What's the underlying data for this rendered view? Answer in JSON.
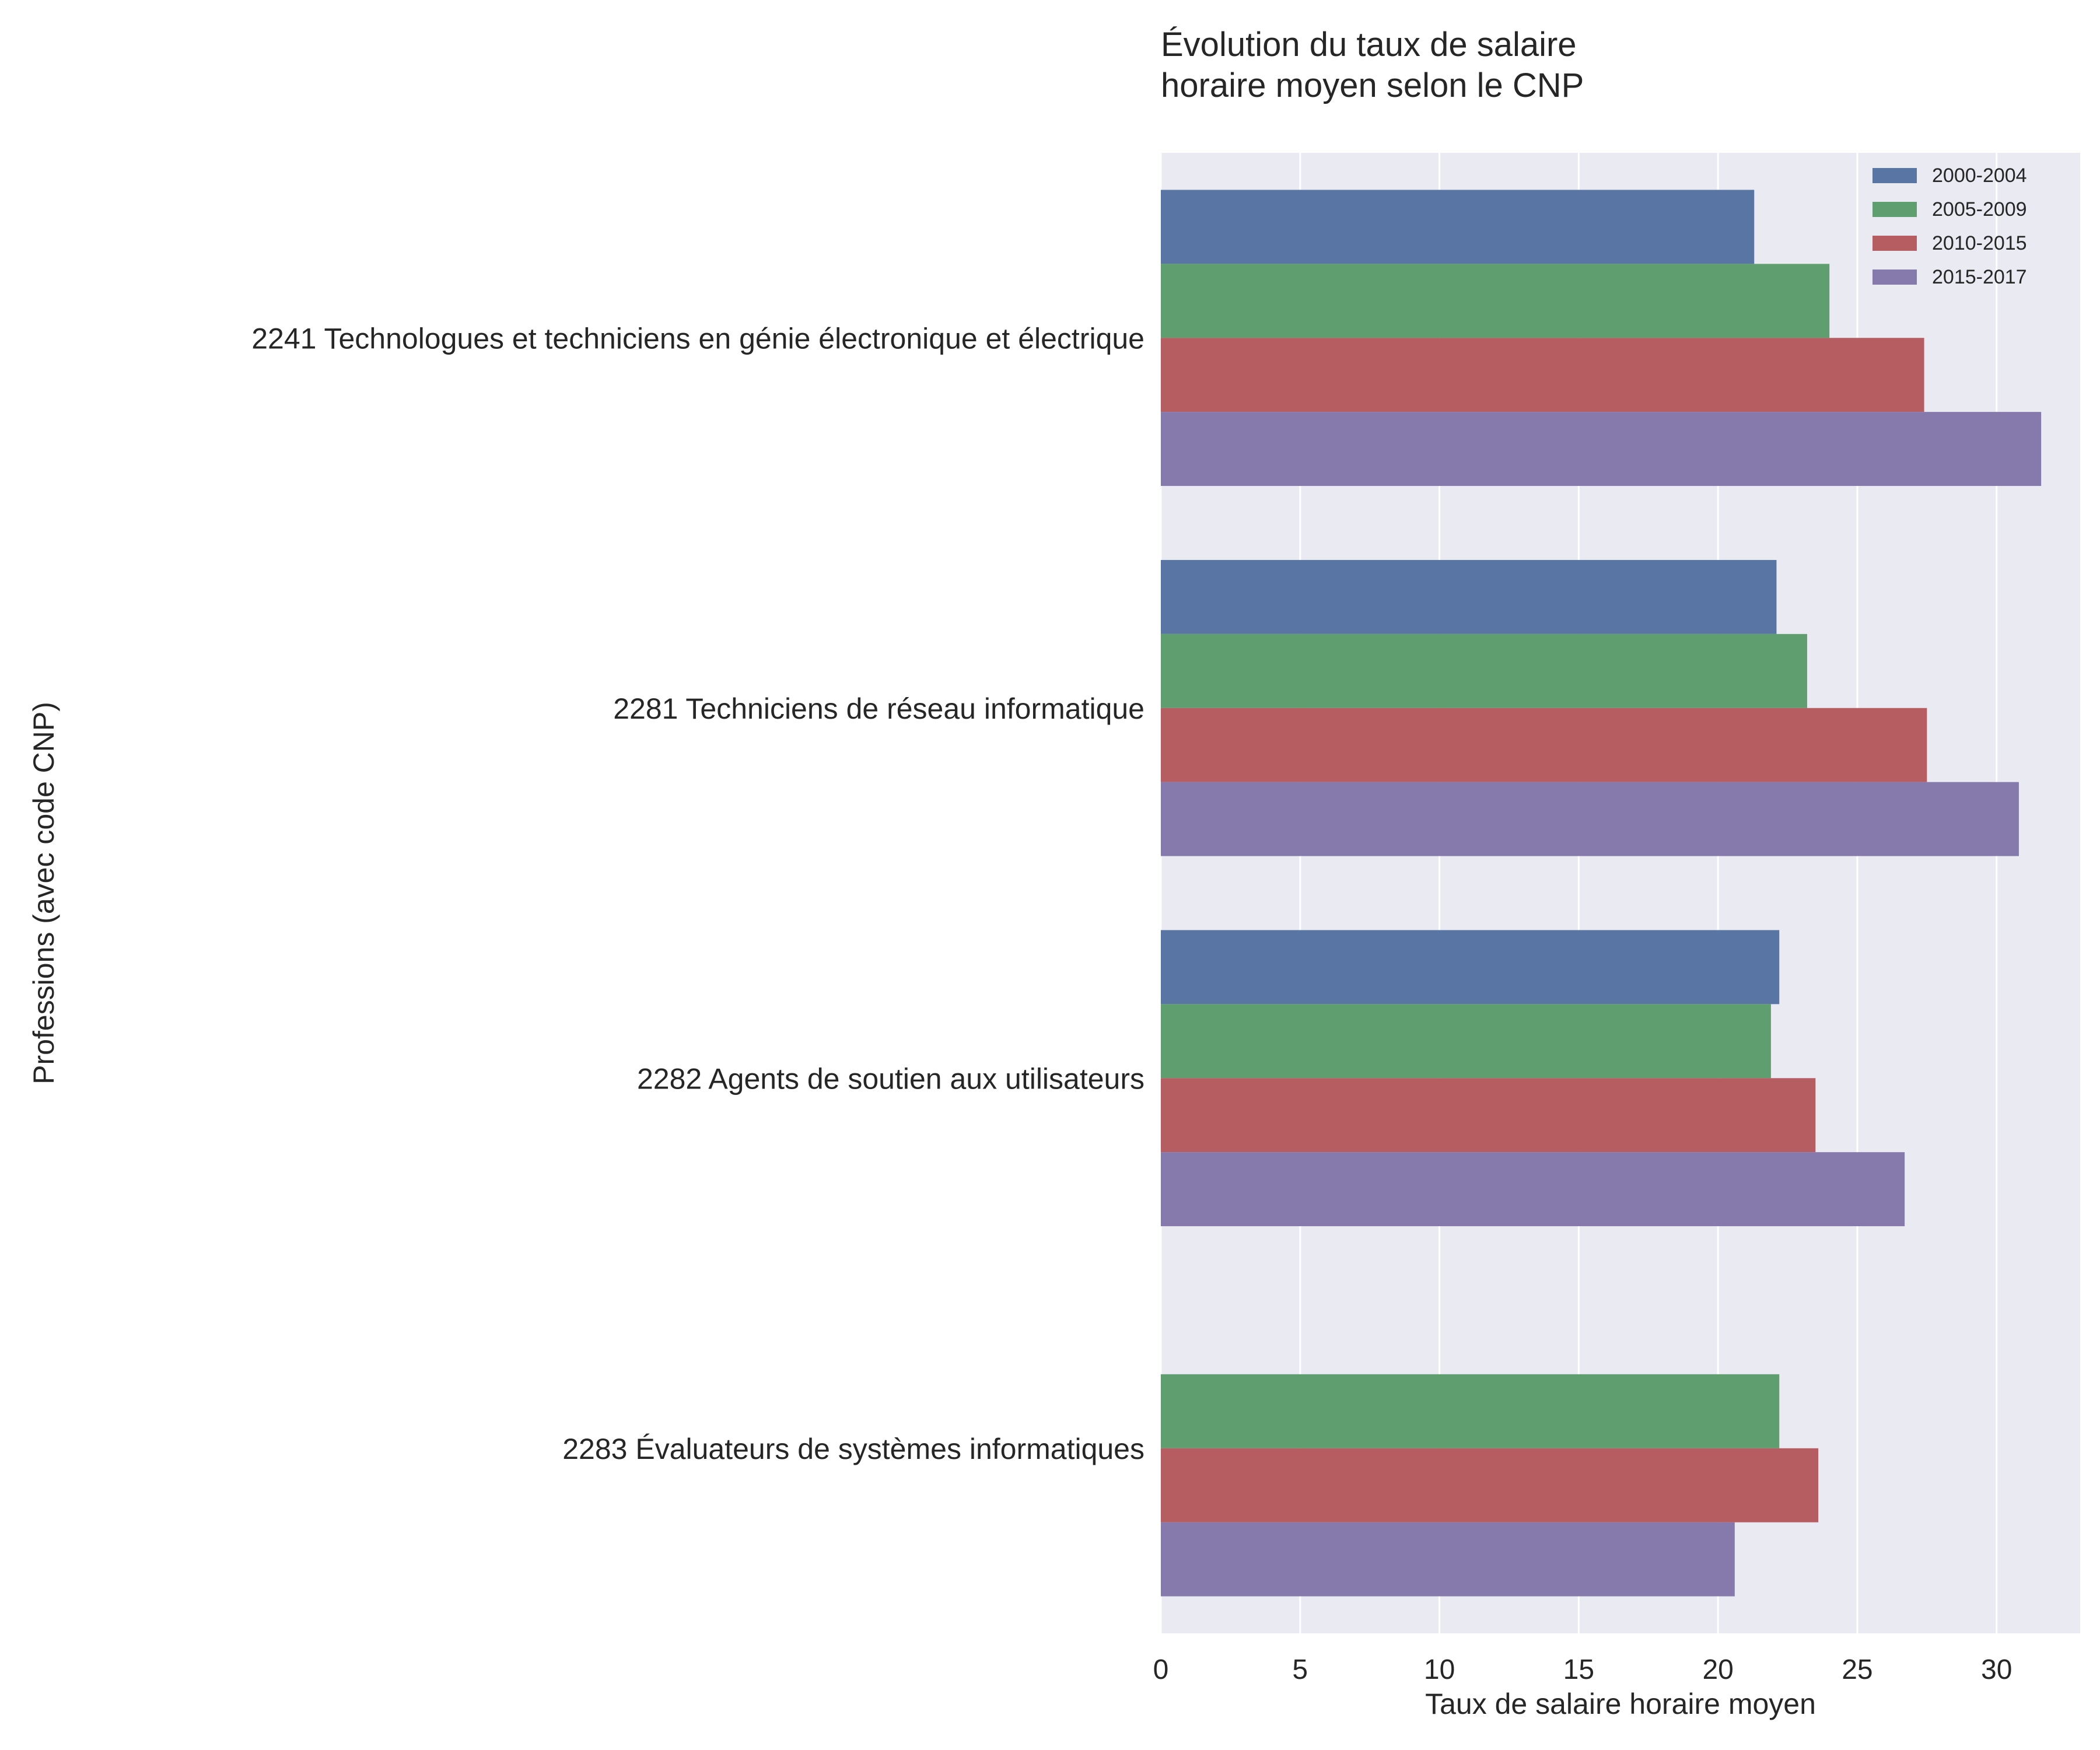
{
  "chart_data": {
    "type": "bar",
    "orientation": "horizontal",
    "title_lines": [
      "Évolution du taux de salaire",
      "horaire moyen selon le CNP"
    ],
    "xlabel": "Taux de salaire horaire moyen",
    "ylabel": "Professions (avec code CNP)",
    "xlim": [
      0,
      33
    ],
    "xticks": [
      "0",
      "5",
      "10",
      "15",
      "20",
      "25",
      "30"
    ],
    "grid": true,
    "legend_position": "top-right",
    "categories": [
      "2241 Technologues et techniciens en génie électronique et électrique",
      "2281 Techniciens de réseau informatique",
      "2282 Agents de soutien aux utilisateurs",
      "2283 Évaluateurs de systèmes informatiques"
    ],
    "series": [
      {
        "name": "2000-2004",
        "color": "#5975a4",
        "values": [
          21.3,
          22.1,
          22.2,
          null
        ]
      },
      {
        "name": "2005-2009",
        "color": "#5f9e6e",
        "values": [
          24.0,
          23.2,
          21.9,
          22.2
        ]
      },
      {
        "name": "2010-2015",
        "color": "#b55d60",
        "values": [
          27.4,
          27.5,
          23.5,
          23.6
        ]
      },
      {
        "name": "2015-2017",
        "color": "#857aab",
        "values": [
          31.6,
          30.8,
          26.7,
          20.6
        ]
      }
    ],
    "colors": {
      "plot_background": "#eaeaf2",
      "grid": "#ffffff",
      "text": "#262626"
    }
  }
}
